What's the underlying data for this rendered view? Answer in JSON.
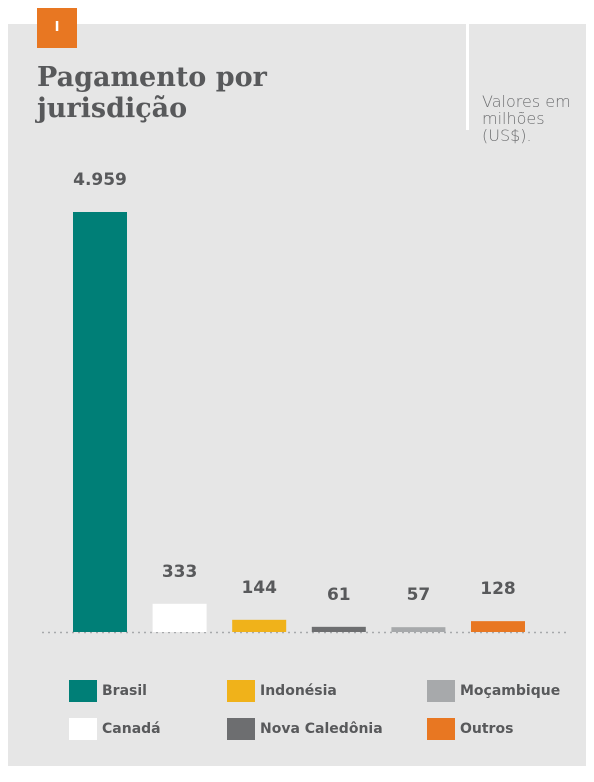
{
  "badge": "I",
  "chart_data": {
    "type": "bar",
    "title": "Pagamento por jurisdição",
    "subtitle": "Valores em milhões (US$).",
    "categories": [
      "Brasil",
      "Canadá",
      "Indonésia",
      "Nova Caledônia",
      "Moçambique",
      "Outros"
    ],
    "values": [
      4959,
      333,
      144,
      61,
      57,
      128
    ],
    "value_labels": [
      "4.959",
      "333",
      "144",
      "61",
      "57",
      "128"
    ],
    "colors": [
      "#007f77",
      "#ffffff",
      "#f0b21a",
      "#6d6e70",
      "#a7a9ab",
      "#e87722"
    ]
  }
}
